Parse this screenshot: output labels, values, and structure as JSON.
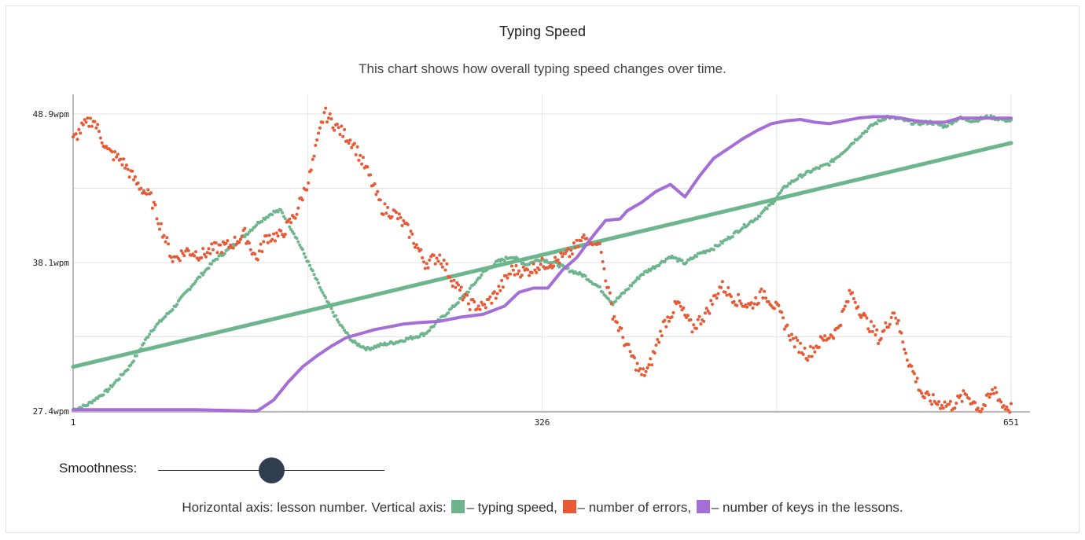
{
  "header": {
    "title": "Typing Speed",
    "subtitle": "This chart shows how overall typing speed changes over time."
  },
  "controls": {
    "smoothness_label": "Smoothness:",
    "smoothness_value": 0.5
  },
  "legend": {
    "prefix": "Horizontal axis: lesson number. Vertical axis: ",
    "speed": "– typing speed,",
    "errors": "– number of errors,",
    "keys": "– number of keys in the lessons."
  },
  "colors": {
    "speed": "#6db58d",
    "errors": "#e85a35",
    "keys": "#a56ed6",
    "grid": "#e3e3e3",
    "axis": "#bbbbbb"
  },
  "chart_data": {
    "type": "scatter",
    "title": "Typing Speed",
    "xlim": [
      1,
      651
    ],
    "ylim": [
      27.4,
      48.9
    ],
    "x_ticks": [
      "1",
      "326",
      "651"
    ],
    "y_ticks": [
      "27.4wpm",
      "38.1wpm",
      "48.9wpm"
    ],
    "series": [
      {
        "name": "typing speed",
        "key": "speed",
        "style": "points",
        "x": [
          1,
          10,
          25,
          40,
          55,
          70,
          85,
          100,
          110,
          120,
          130,
          140,
          145,
          155,
          165,
          175,
          185,
          195,
          205,
          215,
          225,
          235,
          245,
          255,
          265,
          275,
          285,
          295,
          305,
          315,
          325,
          335,
          345,
          355,
          365,
          375,
          385,
          395,
          405,
          415,
          425,
          435,
          445,
          455,
          465,
          475,
          485,
          495,
          505,
          515,
          525,
          535,
          545,
          555,
          565,
          575,
          585,
          595,
          605,
          615,
          625,
          635,
          645,
          651
        ],
        "y": [
          27.5,
          27.8,
          28.9,
          30.6,
          33.2,
          34.8,
          36.7,
          38.4,
          39.2,
          40.1,
          41.1,
          41.8,
          41.9,
          40.1,
          37.9,
          35.7,
          33.8,
          32.4,
          31.9,
          32.2,
          32.4,
          32.7,
          33.0,
          34.0,
          35.0,
          36.1,
          37.4,
          38.2,
          38.6,
          38.0,
          38.4,
          38.1,
          37.6,
          37.2,
          36.4,
          35.2,
          36.2,
          37.3,
          37.9,
          38.6,
          38.1,
          38.8,
          39.2,
          39.9,
          40.7,
          41.4,
          42.4,
          43.7,
          44.4,
          44.9,
          45.3,
          46.2,
          47.2,
          48.1,
          48.7,
          48.5,
          48.2,
          48.3,
          48.0,
          48.6,
          48.4,
          48.7,
          48.5,
          48.4
        ]
      },
      {
        "name": "trend",
        "key": "speed",
        "style": "line",
        "x": [
          1,
          651
        ],
        "y": [
          30.6,
          46.8
        ]
      },
      {
        "name": "number of errors",
        "key": "errors",
        "style": "points",
        "x": [
          1,
          8,
          15,
          25,
          35,
          45,
          55,
          62,
          70,
          80,
          90,
          100,
          110,
          120,
          128,
          135,
          145,
          155,
          165,
          175,
          185,
          195,
          205,
          215,
          225,
          235,
          245,
          255,
          265,
          275,
          285,
          295,
          305,
          315,
          325,
          335,
          345,
          355,
          365,
          375,
          385,
          395,
          400,
          410,
          420,
          430,
          440,
          450,
          460,
          470,
          480,
          490,
          500,
          510,
          520,
          530,
          540,
          550,
          560,
          570,
          580,
          590,
          600,
          610,
          620,
          630,
          640,
          645,
          651
        ],
        "y": [
          47.0,
          48.0,
          48.5,
          46.2,
          45.5,
          43.9,
          42.8,
          40.7,
          38.4,
          39.0,
          38.7,
          39.2,
          39.4,
          40.2,
          38.4,
          40.0,
          40.1,
          41.6,
          44.4,
          49.0,
          47.8,
          46.8,
          44.7,
          42.1,
          41.6,
          40.2,
          38.1,
          38.6,
          36.7,
          35.2,
          34.9,
          36.0,
          37.6,
          37.5,
          38.0,
          38.2,
          38.8,
          39.9,
          39.8,
          34.5,
          32.0,
          30.0,
          30.5,
          33.6,
          35.2,
          33.4,
          34.5,
          36.5,
          35.5,
          35.0,
          36.0,
          34.6,
          32.5,
          31.5,
          32.5,
          33.2,
          36.0,
          34.0,
          32.6,
          34.7,
          31.0,
          28.5,
          28.0,
          27.8,
          28.6,
          27.5,
          29.0,
          27.8,
          27.6
        ]
      },
      {
        "name": "number of keys in the lessons",
        "key": "keys",
        "style": "line",
        "x": [
          1,
          40,
          85,
          128,
          130,
          140,
          150,
          160,
          170,
          180,
          190,
          200,
          210,
          220,
          230,
          240,
          255,
          270,
          285,
          300,
          310,
          320,
          330,
          340,
          350,
          360,
          370,
          380,
          385,
          395,
          405,
          415,
          425,
          435,
          445,
          455,
          465,
          475,
          485,
          495,
          505,
          515,
          525,
          535,
          545,
          555,
          565,
          575,
          585,
          595,
          605,
          615,
          625,
          635,
          645,
          651
        ],
        "y": [
          27.5,
          27.5,
          27.5,
          27.4,
          27.5,
          28.2,
          29.5,
          30.6,
          31.4,
          32.1,
          32.7,
          33.0,
          33.3,
          33.5,
          33.7,
          33.8,
          33.9,
          34.2,
          34.4,
          35.0,
          36.0,
          36.3,
          36.3,
          37.6,
          38.5,
          39.9,
          41.2,
          41.3,
          41.9,
          42.5,
          43.3,
          43.8,
          42.9,
          44.4,
          45.7,
          46.4,
          47.1,
          47.7,
          48.2,
          48.4,
          48.5,
          48.3,
          48.2,
          48.4,
          48.6,
          48.7,
          48.7,
          48.6,
          48.4,
          48.3,
          48.3,
          48.6,
          48.6,
          48.6,
          48.6,
          48.6
        ]
      }
    ],
    "grid": true,
    "legend_position": "bottom"
  }
}
